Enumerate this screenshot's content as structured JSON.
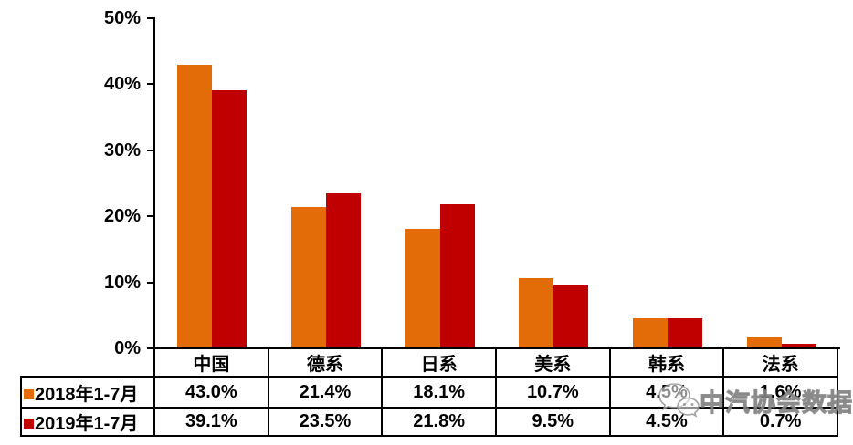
{
  "chart_data": {
    "type": "bar",
    "title": "",
    "xlabel": "",
    "ylabel": "",
    "categories": [
      "中国",
      "德系",
      "日系",
      "美系",
      "韩系",
      "法系"
    ],
    "series": [
      {
        "name": "2018年1-7月",
        "color": "#E36C09",
        "values": [
          43.0,
          21.4,
          18.1,
          10.7,
          4.5,
          1.6
        ],
        "value_labels": [
          "43.0%",
          "21.4%",
          "18.1%",
          "10.7%",
          "4.5%",
          "1.6%"
        ]
      },
      {
        "name": "2019年1-7月",
        "color": "#C00000",
        "values": [
          39.1,
          23.5,
          21.8,
          9.5,
          4.5,
          0.7
        ],
        "value_labels": [
          "39.1%",
          "23.5%",
          "21.8%",
          "9.5%",
          "4.5%",
          "0.7%"
        ]
      }
    ],
    "ylim": [
      0,
      50
    ],
    "yticks": [
      {
        "value": 0,
        "label": "0%"
      },
      {
        "value": 10,
        "label": "10%"
      },
      {
        "value": 20,
        "label": "20%"
      },
      {
        "value": 30,
        "label": "30%"
      },
      {
        "value": 40,
        "label": "40%"
      },
      {
        "value": 50,
        "label": "50%"
      }
    ],
    "grid": false,
    "legend_position": "table-rows-left",
    "axis_color": "#000000",
    "text_color": "#000000"
  },
  "watermark": {
    "text": "中汽协会数据",
    "icon": "wechat-logo"
  }
}
